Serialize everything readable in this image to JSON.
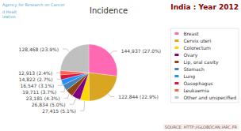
{
  "chart_data": {
    "type": "pie",
    "title": "Incidence",
    "annotations": [
      "India : Year 2012",
      "Agency for Research on Cancer",
      "d Healt\nization",
      "SOURCE: HTTP://GLOBOCAN.IARC.FR"
    ],
    "categories": [
      "Breast",
      "Cervix uteri",
      "Colorectum",
      "Ovary",
      "Lip, oral cavity",
      "Stomach",
      "Lung",
      "Oasophagus",
      "Leukaemia",
      "Other and unspecified"
    ],
    "values": [
      144937,
      122844,
      27415,
      26834,
      23181,
      19711,
      16547,
      14822,
      12913,
      128468
    ],
    "value_labels": [
      "144,937 (27.0%)",
      "122,844 (22.9%)",
      "27,415 (5.1%)",
      "26,834 (5.0%)",
      "23,181 (4.3%)",
      "19,711 (3.7%)",
      "16,547 (3.1%)",
      "14,822 (2.7%)",
      "12,913 (2.4%)",
      "128,468 (23.9%)"
    ],
    "colors": [
      "#FF69B4",
      "#DAA520",
      "#FFD700",
      "#800080",
      "#8B4513",
      "#4682B4",
      "#1E90FF",
      "#DC143C",
      "#FF6347",
      "#C0C0C0"
    ],
    "data_labels": true,
    "legend": "right"
  }
}
